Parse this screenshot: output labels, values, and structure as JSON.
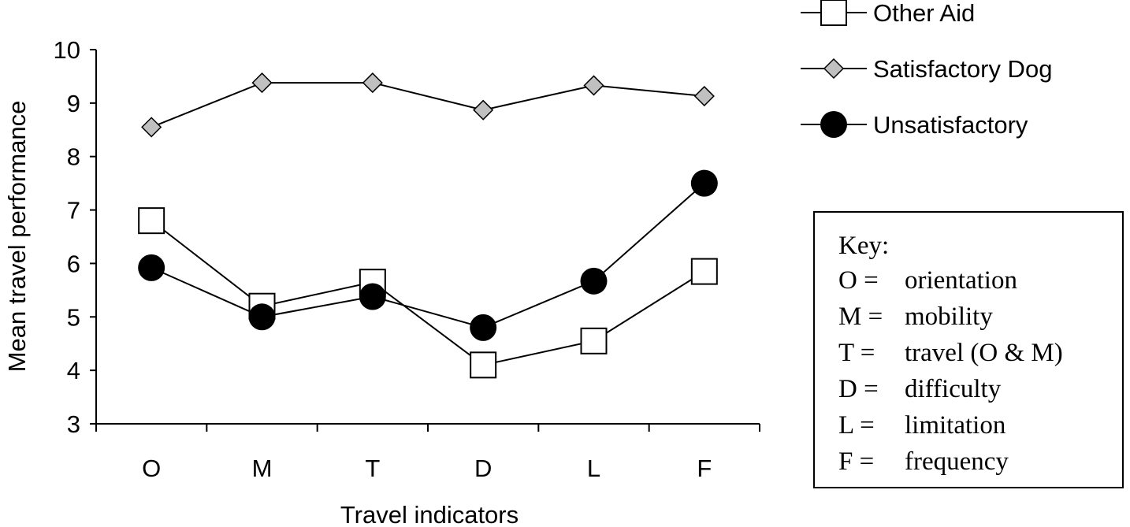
{
  "chart_data": {
    "type": "line",
    "categories": [
      "O",
      "M",
      "T",
      "D",
      "L",
      "F"
    ],
    "series": [
      {
        "name": "Other Aid",
        "marker": "square",
        "values": [
          6.8,
          5.2,
          5.65,
          4.1,
          4.55,
          5.85
        ]
      },
      {
        "name": "Satisfactory Dog",
        "marker": "diamond",
        "values": [
          8.55,
          9.38,
          9.38,
          8.87,
          9.33,
          9.13
        ]
      },
      {
        "name": "Unsatisfactory",
        "marker": "circle",
        "values": [
          5.92,
          5.0,
          5.38,
          4.8,
          5.67,
          7.5
        ]
      }
    ],
    "xlabel": "Travel indicators",
    "ylabel": "Mean travel performance",
    "ylim": [
      3,
      10
    ],
    "yticks": [
      "3",
      "4",
      "5",
      "6",
      "7",
      "8",
      "9",
      "10"
    ],
    "grid": false,
    "legend_position": "top-right",
    "colors": {
      "line": "#000000",
      "diamond_fill": "#c0c0c0",
      "circle_fill": "#000000",
      "square_fill": "#ffffff"
    }
  },
  "key": {
    "title": "Key:",
    "items": [
      {
        "code": "O =",
        "desc": "orientation"
      },
      {
        "code": "M =",
        "desc": "mobility"
      },
      {
        "code": "T =",
        "desc": "travel (O & M)"
      },
      {
        "code": "D =",
        "desc": "difficulty"
      },
      {
        "code": "L =",
        "desc": "limitation"
      },
      {
        "code": "F =",
        "desc": "frequency"
      }
    ]
  }
}
